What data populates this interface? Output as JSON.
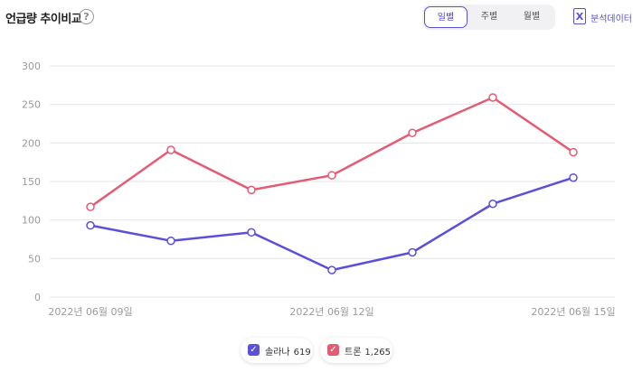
{
  "header": {
    "title": "언급량 추이비교",
    "help_icon": "?",
    "tabs": [
      {
        "label": "일별",
        "active": true
      },
      {
        "label": "주별",
        "active": false
      },
      {
        "label": "월별",
        "active": false
      }
    ],
    "export_label": "분석데이터",
    "export_icon": "X"
  },
  "colors": {
    "accent": "#5a4fd8",
    "series_1": "#5b4fdc",
    "series_2": "#e45b74",
    "grid": "#e6e6e6",
    "axis_text": "#9a9a9a"
  },
  "legend": [
    {
      "name": "솔라나",
      "count": "619",
      "color": "#5b4fdc"
    },
    {
      "name": "트론",
      "count": "1,265",
      "color": "#e45b74"
    }
  ],
  "chart_data": {
    "type": "line",
    "x": [
      "2022년 06월 09일",
      "2022년 06월 10일",
      "2022년 06월 11일",
      "2022년 06월 12일",
      "2022년 06월 13일",
      "2022년 06월 14일",
      "2022년 06월 15일"
    ],
    "x_tick_labels": [
      "2022년 06월 09일",
      "2022년 06월 12일",
      "2022년 06월 15일"
    ],
    "y_ticks": [
      0,
      50,
      100,
      150,
      200,
      250,
      300
    ],
    "ylim": [
      0,
      300
    ],
    "grid": true,
    "legend_position": "bottom",
    "series": [
      {
        "name": "솔라나",
        "values": [
          93,
          73,
          84,
          35,
          58,
          121,
          155
        ]
      },
      {
        "name": "트론",
        "values": [
          117,
          191,
          139,
          158,
          213,
          259,
          188
        ]
      }
    ]
  }
}
